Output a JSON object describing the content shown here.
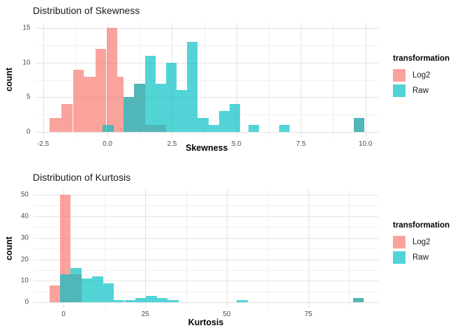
{
  "figure": {
    "background": "#FFFFFF"
  },
  "colors": {
    "log2_fill_hex": "#F8766D",
    "raw_fill_hex": "#00BFC4",
    "fill_alpha": 0.68,
    "grid_major": "#e3e3e3",
    "grid_minor": "#f1f1f1",
    "tick_label": "#4d4d4d",
    "title_text": "#1a1a1a"
  },
  "chart_data": [
    {
      "type": "histogram",
      "title": "Distribution of Skewness",
      "xlabel": "Skewness",
      "ylabel": "count",
      "legend_title": "transformation",
      "legend_position": "right",
      "grid": true,
      "xlim": [
        -2.8,
        10.51
      ],
      "ylim": [
        -0.84,
        15.75
      ],
      "xticks": {
        "values": [
          -2.5,
          0.0,
          2.5,
          5.0,
          7.5,
          10.0
        ],
        "labels": [
          "-2.5",
          "0.0",
          "2.5",
          "5.0",
          "7.5",
          "10.0"
        ]
      },
      "yticks": {
        "values": [
          0,
          5,
          10,
          15
        ],
        "labels": [
          "0",
          "5",
          "10",
          "15"
        ]
      },
      "xminor": [
        -1.25,
        1.25,
        3.75,
        6.25,
        8.75
      ],
      "yminor": [
        2.5,
        7.5,
        12.5
      ],
      "series": [
        {
          "name": "Log2",
          "color": "#F8766D",
          "alpha": 0.68,
          "bins": [
            [
              -2.25,
              -1.79,
              2
            ],
            [
              -1.79,
              -1.34,
              4
            ],
            [
              -1.34,
              -0.91,
              9
            ],
            [
              -0.91,
              -0.47,
              8
            ],
            [
              -0.47,
              -0.04,
              12
            ],
            [
              -0.04,
              0.39,
              15
            ],
            [
              0.39,
              0.63,
              8
            ],
            [
              0.63,
              1.04,
              5
            ],
            [
              1.04,
              1.45,
              7
            ],
            [
              1.45,
              1.86,
              1
            ],
            [
              1.86,
              2.27,
              1
            ],
            [
              9.55,
              9.96,
              2
            ]
          ]
        },
        {
          "name": "Raw",
          "color": "#00BFC4",
          "alpha": 0.68,
          "bins": [
            [
              -0.19,
              0.24,
              1
            ],
            [
              0.63,
              1.04,
              5
            ],
            [
              1.04,
              1.45,
              7
            ],
            [
              1.45,
              1.86,
              11
            ],
            [
              1.86,
              2.27,
              7
            ],
            [
              2.27,
              2.68,
              10
            ],
            [
              2.68,
              3.09,
              6
            ],
            [
              3.09,
              3.5,
              13
            ],
            [
              3.5,
              3.91,
              2
            ],
            [
              3.91,
              4.32,
              1
            ],
            [
              4.32,
              4.73,
              3
            ],
            [
              4.73,
              5.14,
              4
            ],
            [
              5.45,
              5.86,
              1
            ],
            [
              6.66,
              7.07,
              1
            ],
            [
              9.55,
              9.96,
              2
            ]
          ]
        }
      ]
    },
    {
      "type": "histogram",
      "title": "Distribution of Kurtosis",
      "xlabel": "Kurtosis",
      "ylabel": "count",
      "legend_title": "transformation",
      "legend_position": "right",
      "grid": true,
      "xlim": [
        -9.2,
        96.4
      ],
      "ylim": [
        -2.5,
        52.5
      ],
      "xticks": {
        "values": [
          0,
          25,
          50,
          75
        ],
        "labels": [
          "0",
          "25",
          "50",
          "75"
        ]
      },
      "yticks": {
        "values": [
          0,
          10,
          20,
          30,
          40,
          50
        ],
        "labels": [
          "0",
          "10",
          "20",
          "30",
          "40",
          "50"
        ]
      },
      "xminor": [
        12.5,
        37.5,
        62.5,
        87.5
      ],
      "yminor": [
        5,
        15,
        25,
        35,
        45
      ],
      "series": [
        {
          "name": "Log2",
          "color": "#F8766D",
          "alpha": 0.68,
          "bins": [
            [
              -4.4,
              -1.1,
              8
            ],
            [
              -1.1,
              2.2,
              50
            ],
            [
              2.2,
              5.5,
              13
            ],
            [
              88.6,
              91.9,
              2
            ]
          ]
        },
        {
          "name": "Raw",
          "color": "#00BFC4",
          "alpha": 0.68,
          "bins": [
            [
              -1.1,
              2.2,
              13
            ],
            [
              2.2,
              5.5,
              16
            ],
            [
              5.5,
              8.8,
              11
            ],
            [
              8.8,
              12.1,
              12
            ],
            [
              12.1,
              15.4,
              9
            ],
            [
              15.4,
              18.7,
              1
            ],
            [
              18.7,
              22.0,
              1
            ],
            [
              22.0,
              25.3,
              2
            ],
            [
              25.3,
              28.6,
              3
            ],
            [
              28.6,
              31.9,
              2
            ],
            [
              31.9,
              35.2,
              1
            ],
            [
              53.0,
              56.5,
              1
            ],
            [
              88.6,
              91.9,
              2
            ]
          ]
        }
      ]
    }
  ]
}
